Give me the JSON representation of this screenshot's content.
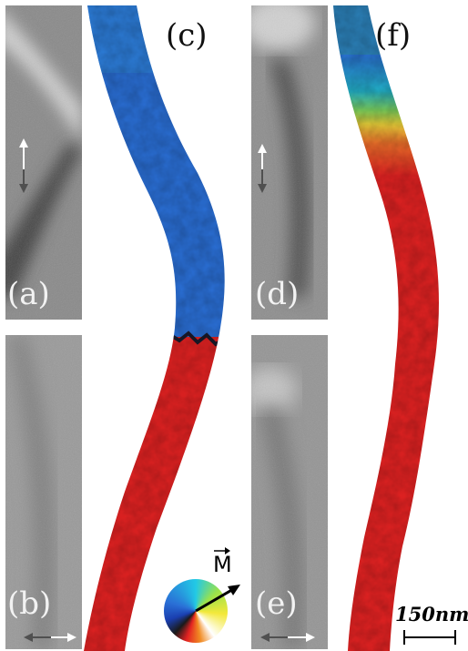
{
  "panels": {
    "a": {
      "label": "(a)"
    },
    "b": {
      "label": "(b)"
    },
    "c": {
      "label": "(c)"
    },
    "d": {
      "label": "(d)"
    },
    "e": {
      "label": "(e)"
    },
    "f": {
      "label": "(f)"
    }
  },
  "color_wheel": {
    "label": "M"
  },
  "scale_bar": {
    "label": "150nm"
  },
  "colors": {
    "domain_blue": "#2a6fd6",
    "domain_red": "#e32222",
    "wall_yellow": "#e8d23a",
    "wall_green": "#7dcf5a",
    "arrow_gray": "#505050"
  }
}
